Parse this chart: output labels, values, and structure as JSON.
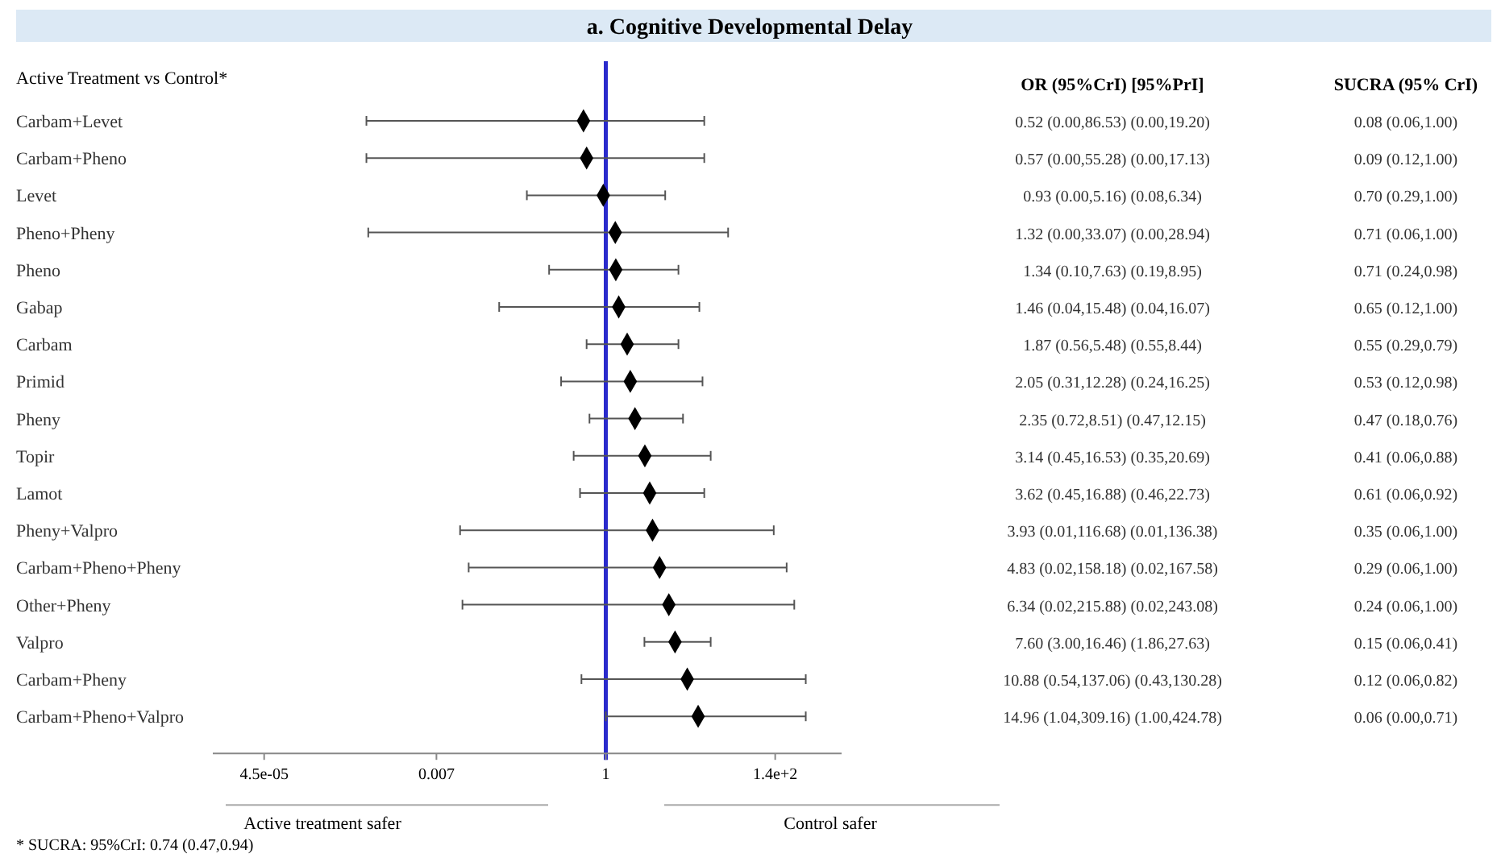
{
  "chart_data": {
    "type": "scatter",
    "orientation": "horizontal",
    "title": "a. Cognitive Developmental Delay",
    "ylabel": "Active Treatment vs Control*",
    "categories": [
      "Carbam+Levet",
      "Carbam+Pheno",
      "Levet",
      "Pheno+Pheny",
      "Pheno",
      "Gabap",
      "Carbam",
      "Primid",
      "Pheny",
      "Topir",
      "Lamot",
      "Pheny+Valpro",
      "Carbam+Pheno+Pheny",
      "Other+Pheny",
      "Valpro",
      "Carbam+Pheny",
      "Carbam+Pheno+Valpro"
    ],
    "values": [
      0.52,
      0.57,
      0.93,
      1.32,
      1.34,
      1.46,
      1.87,
      2.05,
      2.35,
      3.14,
      3.62,
      3.93,
      4.83,
      6.34,
      7.6,
      10.88,
      14.96
    ],
    "errors": [
      [
        0.0009,
        17.9
      ],
      [
        0.0009,
        17.9
      ],
      [
        0.099,
        5.7
      ],
      [
        0.00095,
        36
      ],
      [
        0.19,
        8.4
      ],
      [
        0.044,
        15.5
      ],
      [
        0.57,
        8.4
      ],
      [
        0.27,
        17
      ],
      [
        0.62,
        9.6
      ],
      [
        0.39,
        21.6
      ],
      [
        0.47,
        17.9
      ],
      [
        0.014,
        137
      ],
      [
        0.018,
        200
      ],
      [
        0.015,
        250
      ],
      [
        3.1,
        21.6
      ],
      [
        0.49,
        350
      ],
      [
        1,
        350
      ]
    ],
    "xlim": [
      1e-05,
      1000
    ],
    "log": "x",
    "xticks": [
      {
        "value": 4.5e-05,
        "label": "4.5e-05"
      },
      {
        "value": 0.007,
        "label": "0.007"
      },
      1,
      {
        "value": 143,
        "label": "1.4e+2"
      }
    ],
    "marker": "diamond",
    "color": "#000000",
    "grid": false,
    "ref_lines": [
      {
        "axis": "x",
        "value": 1,
        "label": null,
        "color": "#2a2acc"
      }
    ],
    "annotations": [
      "OR (95%CrI) [95%PrI]",
      "SUCRA (95% CrI)",
      "0.52 (0.00,86.53) (0.00,19.20)",
      "0.57 (0.00,55.28) (0.00,17.13)",
      "0.93 (0.00,5.16) (0.08,6.34)",
      "1.32 (0.00,33.07) (0.00,28.94)",
      "1.34 (0.10,7.63) (0.19,8.95)",
      "1.46 (0.04,15.48) (0.04,16.07)",
      "1.87 (0.56,5.48) (0.55,8.44)",
      "2.05 (0.31,12.28) (0.24,16.25)",
      "2.35 (0.72,8.51) (0.47,12.15)",
      "3.14 (0.45,16.53) (0.35,20.69)",
      "3.62 (0.45,16.88) (0.46,22.73)",
      "3.93 (0.01,116.68) (0.01,136.38)",
      "4.83 (0.02,158.18) (0.02,167.58)",
      "6.34 (0.02,215.88) (0.02,243.08)",
      "7.60 (3.00,16.46) (1.86,27.63)",
      "10.88 (0.54,137.06) (0.43,130.28)",
      "14.96 (1.04,309.16) (1.00,424.78)",
      "0.08 (0.06,1.00)",
      "0.09 (0.12,1.00)",
      "0.70 (0.29,1.00)",
      "0.71 (0.06,1.00)",
      "0.71 (0.24,0.98)",
      "0.65 (0.12,1.00)",
      "0.55 (0.29,0.79)",
      "0.53 (0.12,0.98)",
      "0.47 (0.18,0.76)",
      "0.41 (0.06,0.88)",
      "0.61 (0.06,0.92)",
      "0.35 (0.06,1.00)",
      "0.29 (0.06,1.00)",
      "0.24 (0.06,1.00)",
      "0.15 (0.06,0.41)",
      "0.12 (0.06,0.82)",
      "0.06 (0.00,0.71)",
      "Active treatment safer",
      "Control safer",
      "* SUCRA: 95%CrI: 0.74 (0.47,0.94)"
    ]
  }
}
